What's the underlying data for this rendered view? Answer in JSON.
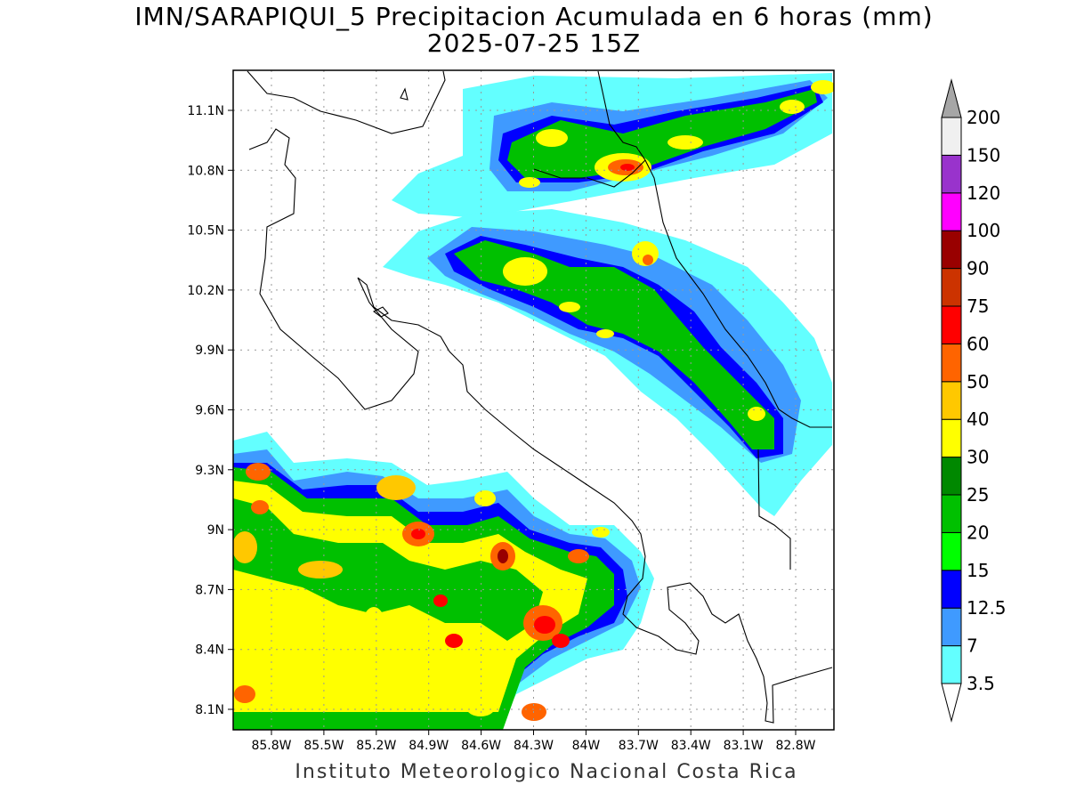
{
  "title": {
    "line1": "IMN/SARAPIQUI_5 Precipitacion Acumulada en 6 horas (mm)",
    "line2": "2025-07-25 15Z"
  },
  "credit": "Instituto Meteorologico Nacional Costa Rica",
  "map": {
    "type": "filled-contour precipitation map",
    "units": "mm",
    "lon_range": [
      -86.0,
      -82.6
    ],
    "lat_range": [
      8.0,
      11.3
    ],
    "lat_ticks": [
      "11.1N",
      "10.8N",
      "10.5N",
      "10.2N",
      "9.9N",
      "9.6N",
      "9.3N",
      "9N",
      "8.7N",
      "8.4N",
      "8.1N"
    ],
    "lon_ticks": [
      "85.8W",
      "85.5W",
      "85.2W",
      "84.9W",
      "84.6W",
      "84.3W",
      "84W",
      "83.7W",
      "83.4W",
      "83.1W",
      "82.8W"
    ],
    "grid": "dotted"
  },
  "colorbar": {
    "levels": [
      "3.5",
      "7",
      "12.5",
      "15",
      "20",
      "25",
      "30",
      "40",
      "50",
      "60",
      "75",
      "90",
      "100",
      "120",
      "150",
      "200"
    ],
    "colors": [
      "#63ffff",
      "#3f9aff",
      "#0000ff",
      "#00ff00",
      "#00c000",
      "#008800",
      "#ffff00",
      "#ffc800",
      "#ff6400",
      "#ff0000",
      "#cc3300",
      "#990000",
      "#ff00ff",
      "#9933cc",
      "#f0f0f0",
      "#a6a6a6"
    ]
  }
}
